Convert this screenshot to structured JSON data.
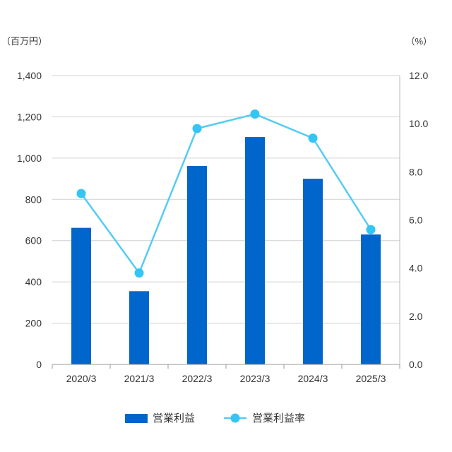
{
  "chart_data": {
    "type": "bar",
    "categories": [
      "2020/3",
      "2021/3",
      "2022/3",
      "2023/3",
      "2024/3",
      "2025/3"
    ],
    "series": [
      {
        "name": "営業利益",
        "type": "bar",
        "axis": "left",
        "color": "#0066cc",
        "values": [
          662,
          355,
          962,
          1102,
          900,
          630
        ]
      },
      {
        "name": "営業利益率",
        "type": "line",
        "axis": "right",
        "color": "#55ccf2",
        "values": [
          7.1,
          3.8,
          9.8,
          10.4,
          9.4,
          5.6
        ]
      }
    ],
    "y_left": {
      "unit": "（百万円）",
      "range": [
        0,
        1400
      ],
      "ticks": [
        "0",
        "200",
        "400",
        "600",
        "800",
        "1,000",
        "1,200",
        "1,400"
      ]
    },
    "y_right": {
      "unit": "（%）",
      "range": [
        0,
        12
      ],
      "ticks": [
        "0.0",
        "2.0",
        "4.0",
        "6.0",
        "8.0",
        "10.0",
        "12.0"
      ]
    },
    "grid": true,
    "legend_position": "bottom"
  }
}
